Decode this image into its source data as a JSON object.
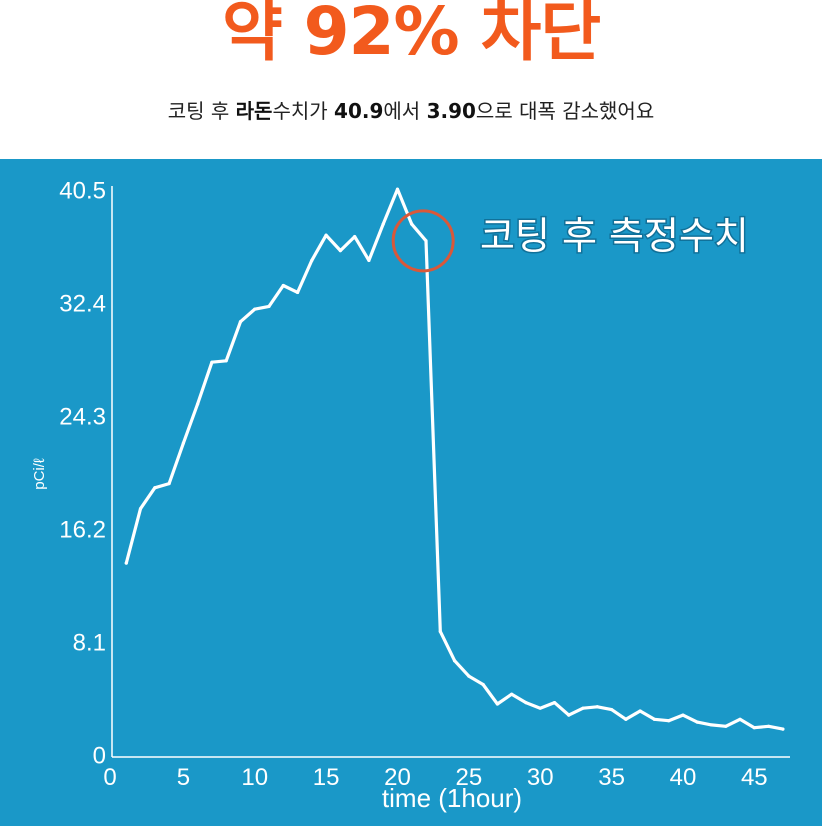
{
  "headline": {
    "text": "약 92% 차단",
    "color": "#f25a1d"
  },
  "subline": {
    "p1": "코팅 후 ",
    "b1": "라돈",
    "p2": "수치가 ",
    "b2": "40.9",
    "p3": "에서 ",
    "b3": "3.90",
    "p4": "으로 대폭 감소했어요"
  },
  "colors": {
    "panel": "#1a98c8",
    "line": "#ffffff",
    "circle": "#d9583a"
  },
  "chart_data": {
    "type": "line",
    "title": "",
    "xlabel": "time (1hour)",
    "ylabel": "pCi/ℓ",
    "xlim": [
      0,
      47.5
    ],
    "ylim": [
      0,
      40.5
    ],
    "xticks": [
      0,
      5,
      10,
      15,
      20,
      25,
      30,
      35,
      40,
      45
    ],
    "xtick_labels": [
      "0",
      "5",
      "10",
      "15",
      "20",
      "25",
      "30",
      "35",
      "40",
      "45"
    ],
    "yticks": [
      0,
      8.1,
      16.2,
      24.3,
      32.4,
      40.5
    ],
    "ytick_labels": [
      "0",
      "8.1",
      "16.2",
      "24.3",
      "32.4",
      "40.5"
    ],
    "grid": false,
    "annotation": {
      "text": "코팅 후 측정수치",
      "x": 21.8,
      "y": 37.0
    },
    "series": [
      {
        "x": [
          1,
          2,
          3,
          4,
          5,
          6,
          7,
          8,
          9,
          10,
          11,
          12,
          13,
          14,
          15,
          16,
          17,
          18,
          19,
          20,
          21,
          22,
          23,
          24,
          25,
          26,
          27,
          28,
          29,
          30,
          31,
          32,
          33,
          34,
          35,
          36,
          37,
          38,
          39,
          40,
          41,
          42,
          43,
          44,
          45,
          46,
          47
        ],
        "values": [
          13.9,
          17.8,
          19.3,
          19.6,
          22.5,
          25.3,
          28.3,
          28.4,
          31.2,
          32.1,
          32.3,
          33.8,
          33.3,
          35.6,
          37.4,
          36.3,
          37.3,
          35.6,
          38.2,
          40.7,
          38.2,
          37.0,
          9.0,
          6.9,
          5.8,
          5.2,
          3.8,
          4.5,
          3.9,
          3.5,
          3.9,
          3.0,
          3.5,
          3.6,
          3.4,
          2.7,
          3.3,
          2.7,
          2.6,
          3.0,
          2.5,
          2.3,
          2.2,
          2.7,
          2.1,
          2.2,
          2.0
        ]
      }
    ]
  }
}
